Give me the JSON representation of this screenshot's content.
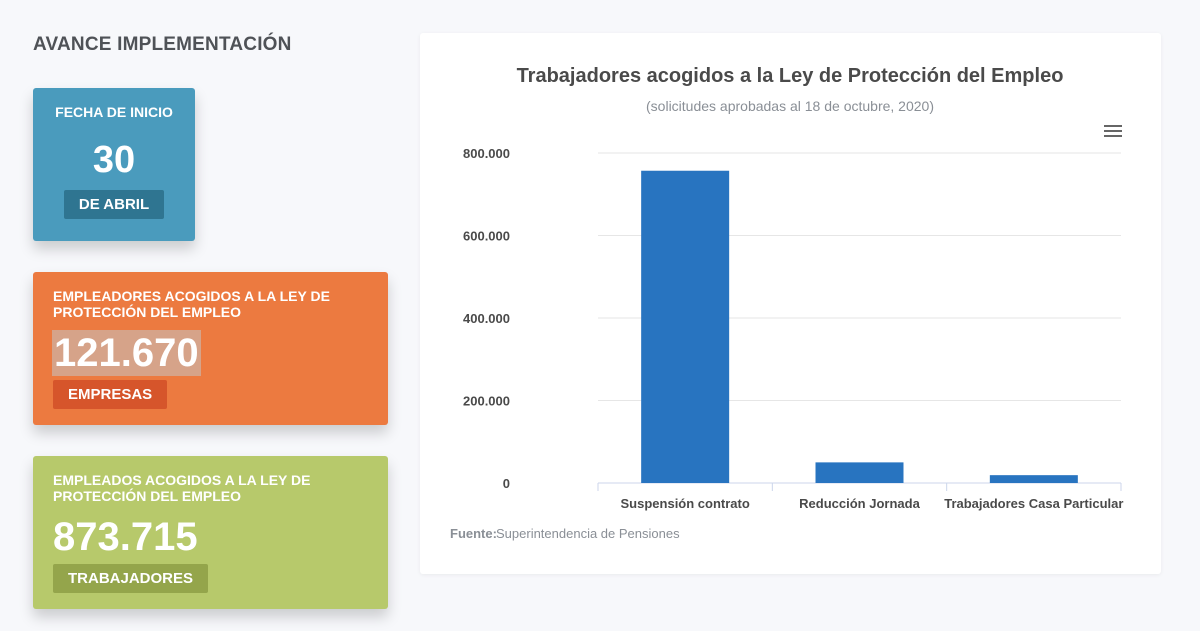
{
  "section_title": "AVANCE IMPLEMENTACIÓN",
  "cards": {
    "start": {
      "label": "FECHA DE INICIO",
      "value": "30",
      "badge": "DE ABRIL",
      "color": "#4a9bbd"
    },
    "employers": {
      "label": "EMPLEADORES ACOGIDOS A LA LEY DE PROTECCIÓN DEL EMPLEO",
      "value": "121.670",
      "badge": "EMPRESAS",
      "color": "#ec7a40"
    },
    "employees": {
      "label": "EMPLEADOS ACOGIDOS A LA LEY DE PROTECCIÓN DEL EMPLEO",
      "value": "873.715",
      "badge": "TRABAJADORES",
      "color": "#b7c96b"
    }
  },
  "chart_data": {
    "type": "bar",
    "title": "Trabajadores acogidos a la Ley de Protección del Empleo",
    "subtitle": "(solicitudes aprobadas al 18 de octubre, 2020)",
    "categories": [
      "Suspensión contrato",
      "Reducción Jornada",
      "Trabajadores Casa Particular"
    ],
    "values": [
      757000,
      50000,
      19000
    ],
    "ylim": [
      0,
      800000
    ],
    "yticks": [
      "0",
      "200.000",
      "400.000",
      "600.000",
      "800.000"
    ],
    "bar_color": "#2874c0",
    "grid": true,
    "legend": false,
    "source_label": "Fuente:",
    "source_text": "Superintendencia de Pensiones"
  }
}
